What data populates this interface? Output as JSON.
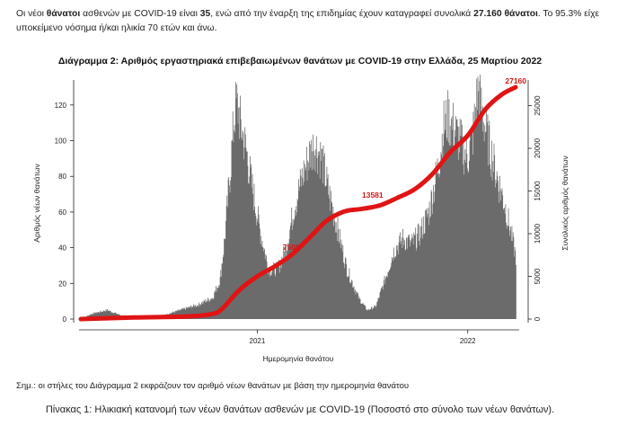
{
  "intro": {
    "p1": "Οι νέοι ",
    "deaths_word": "θάνατοι",
    "p2": " ασθενών με COVID-19 είναι ",
    "new_deaths": "35",
    "p3": ", ενώ από την έναρξη της επιδημίας έχουν καταγραφεί συνολικά ",
    "total_deaths": "27.160 θάνατοι",
    "p4": ".  Το 95.3% είχε",
    "line2": "υποκείμενο νόσημα ή/και ηλικία 70 ετών και άνω."
  },
  "footnote": "Σημ.: οι στήλες του Διάγραμμα 2 εκφράζουν τον αριθμό νέων θανάτων με βάση την ημερομηνία θανάτου",
  "table_caption": "Πίνακας 1: Ηλικιακή κατανομή των νέων θανάτων ασθενών με COVID-19 (Ποσοστό στο σύνολο των νέων θανάτων).",
  "colors": {
    "bars": "#6b6b6b",
    "cumulative_line": "#e01414",
    "axis": "#222222",
    "annotation": "#d01818"
  },
  "chart_data": {
    "type": "bar",
    "title": "Διάγραμμα 2: Αριθμός εργαστηριακά επιβεβαιωμένων θανάτων με COVID-19 στην Ελλάδα, 25 Μαρτίου 2022",
    "xlabel": "Ημερομηνία θανάτου",
    "ylabel": "Αριθμός νέων θανάτων",
    "y2label": "Συνολικός αριθμός θανάτων",
    "xlim": [
      "2020-03-01",
      "2022-03-25"
    ],
    "ylim": [
      0,
      130
    ],
    "y2lim": [
      0,
      27160
    ],
    "x_ticks": [
      {
        "date": "2021-01-01",
        "label": "2021"
      },
      {
        "date": "2022-01-01",
        "label": "2022"
      }
    ],
    "y_ticks": [
      0,
      20,
      40,
      60,
      80,
      100,
      120
    ],
    "y2_ticks": [
      0,
      5000,
      10000,
      15000,
      20000,
      25000
    ],
    "daily_deaths_keypoints": [
      {
        "x": "2020-03-01",
        "y": 0
      },
      {
        "x": "2020-03-20",
        "y": 3
      },
      {
        "x": "2020-04-15",
        "y": 5
      },
      {
        "x": "2020-05-10",
        "y": 2
      },
      {
        "x": "2020-06-15",
        "y": 1
      },
      {
        "x": "2020-07-20",
        "y": 2
      },
      {
        "x": "2020-08-20",
        "y": 5
      },
      {
        "x": "2020-09-20",
        "y": 8
      },
      {
        "x": "2020-10-15",
        "y": 12
      },
      {
        "x": "2020-10-28",
        "y": 22
      },
      {
        "x": "2020-11-05",
        "y": 45
      },
      {
        "x": "2020-11-15",
        "y": 85
      },
      {
        "x": "2020-11-22",
        "y": 115
      },
      {
        "x": "2020-11-26",
        "y": 121
      },
      {
        "x": "2020-12-02",
        "y": 110
      },
      {
        "x": "2020-12-12",
        "y": 95
      },
      {
        "x": "2020-12-22",
        "y": 75
      },
      {
        "x": "2021-01-05",
        "y": 50
      },
      {
        "x": "2021-01-20",
        "y": 28
      },
      {
        "x": "2021-02-05",
        "y": 28
      },
      {
        "x": "2021-02-20",
        "y": 40
      },
      {
        "x": "2021-03-05",
        "y": 62
      },
      {
        "x": "2021-03-20",
        "y": 80
      },
      {
        "x": "2021-04-01",
        "y": 92
      },
      {
        "x": "2021-04-10",
        "y": 98
      },
      {
        "x": "2021-04-22",
        "y": 90
      },
      {
        "x": "2021-05-05",
        "y": 70
      },
      {
        "x": "2021-05-20",
        "y": 50
      },
      {
        "x": "2021-06-05",
        "y": 28
      },
      {
        "x": "2021-06-25",
        "y": 12
      },
      {
        "x": "2021-07-10",
        "y": 5
      },
      {
        "x": "2021-07-25",
        "y": 7
      },
      {
        "x": "2021-08-10",
        "y": 22
      },
      {
        "x": "2021-08-25",
        "y": 38
      },
      {
        "x": "2021-09-10",
        "y": 45
      },
      {
        "x": "2021-09-25",
        "y": 42
      },
      {
        "x": "2021-10-10",
        "y": 48
      },
      {
        "x": "2021-10-25",
        "y": 60
      },
      {
        "x": "2021-11-10",
        "y": 85
      },
      {
        "x": "2021-11-20",
        "y": 108
      },
      {
        "x": "2021-11-28",
        "y": 113
      },
      {
        "x": "2021-12-10",
        "y": 105
      },
      {
        "x": "2021-12-20",
        "y": 98
      },
      {
        "x": "2021-12-31",
        "y": 90
      },
      {
        "x": "2022-01-10",
        "y": 105
      },
      {
        "x": "2022-01-18",
        "y": 128
      },
      {
        "x": "2022-01-26",
        "y": 115
      },
      {
        "x": "2022-02-05",
        "y": 100
      },
      {
        "x": "2022-02-20",
        "y": 80
      },
      {
        "x": "2022-03-05",
        "y": 65
      },
      {
        "x": "2022-03-15",
        "y": 50
      },
      {
        "x": "2022-03-25",
        "y": 35
      }
    ],
    "cumulative_deaths_keypoints": [
      {
        "x": "2020-03-01",
        "y": 0
      },
      {
        "x": "2020-06-01",
        "y": 180
      },
      {
        "x": "2020-09-01",
        "y": 300
      },
      {
        "x": "2020-10-15",
        "y": 600
      },
      {
        "x": "2020-11-01",
        "y": 1200
      },
      {
        "x": "2020-12-01",
        "y": 3400
      },
      {
        "x": "2021-01-01",
        "y": 5000
      },
      {
        "x": "2021-02-01",
        "y": 6200
      },
      {
        "x": "2021-03-01",
        "y": 7500
      },
      {
        "x": "2021-04-01",
        "y": 9500
      },
      {
        "x": "2021-05-01",
        "y": 11500
      },
      {
        "x": "2021-06-01",
        "y": 12600
      },
      {
        "x": "2021-07-01",
        "y": 12900
      },
      {
        "x": "2021-08-01",
        "y": 13300
      },
      {
        "x": "2021-09-01",
        "y": 14200
      },
      {
        "x": "2021-10-01",
        "y": 15200
      },
      {
        "x": "2021-11-01",
        "y": 17000
      },
      {
        "x": "2021-12-01",
        "y": 19500
      },
      {
        "x": "2022-01-01",
        "y": 21500
      },
      {
        "x": "2022-02-01",
        "y": 24600
      },
      {
        "x": "2022-03-01",
        "y": 26300
      },
      {
        "x": "2022-03-25",
        "y": 27160
      }
    ],
    "annotations": [
      {
        "x": "2021-03-01",
        "y2": 7500,
        "label": "7500"
      },
      {
        "x": "2021-07-20",
        "y2": 13581,
        "label": "13581"
      },
      {
        "x": "2022-03-25",
        "y2": 27160,
        "label": "27160"
      }
    ]
  }
}
